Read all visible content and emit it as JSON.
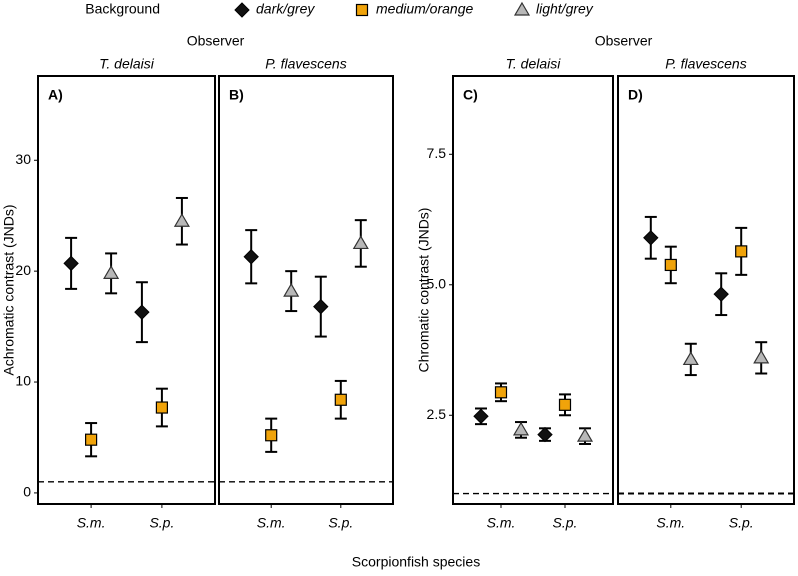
{
  "chart_data": [
    {
      "type": "point-range",
      "panel_label": "A)",
      "facet_title": "T. delaisi",
      "group_label": "Observer",
      "legend_title": "Background",
      "ylabel": "Achromatic contrast (JNDs)",
      "xlabel": "Scorpionfish species",
      "categories": [
        "S.m.",
        "S.p."
      ],
      "ylim": [
        -1,
        37.6
      ],
      "yticks": [
        0,
        10,
        20,
        30
      ],
      "reference_line": 1,
      "series": [
        {
          "name": "dark/grey",
          "color": "#111111",
          "marker": "diamond",
          "values": [
            20.7,
            16.3
          ],
          "errors": [
            2.3,
            2.7
          ]
        },
        {
          "name": "medium/orange",
          "color": "#f0a30a",
          "marker": "square",
          "values": [
            4.8,
            7.7
          ],
          "errors": [
            1.5,
            1.7
          ]
        },
        {
          "name": "light/grey",
          "color": "#b8b8b8",
          "marker": "triangle",
          "values": [
            19.8,
            24.5
          ],
          "errors": [
            1.8,
            2.1
          ]
        }
      ]
    },
    {
      "type": "point-range",
      "panel_label": "B)",
      "facet_title": "P. flavescens",
      "categories": [
        "S.m.",
        "S.p."
      ],
      "ylim": [
        -1,
        37.6
      ],
      "reference_line": 1,
      "series": [
        {
          "color": "#111111",
          "marker": "diamond",
          "values": [
            21.3,
            16.8
          ],
          "errors": [
            2.4,
            2.7
          ]
        },
        {
          "color": "#f0a30a",
          "marker": "square",
          "values": [
            5.2,
            8.4
          ],
          "errors": [
            1.5,
            1.7
          ]
        },
        {
          "color": "#b8b8b8",
          "marker": "triangle",
          "values": [
            18.2,
            22.5
          ],
          "errors": [
            1.8,
            2.1
          ]
        }
      ]
    },
    {
      "type": "point-range",
      "panel_label": "C)",
      "facet_title": "T. delaisi",
      "group_label": "Observer",
      "ylabel": "Chromatic contrast (JNDs)",
      "categories": [
        "S.m.",
        "S.p."
      ],
      "ylim": [
        0.8,
        9.0
      ],
      "yticks": [
        2.5,
        {
          "value": 5,
          "label": "5.0"
        },
        7.5
      ],
      "reference_line": 1,
      "series": [
        {
          "color": "#111111",
          "marker": "diamond",
          "values": [
            2.48,
            2.13
          ],
          "errors": [
            0.15,
            0.12
          ]
        },
        {
          "color": "#f0a30a",
          "marker": "square",
          "values": [
            2.94,
            2.7
          ],
          "errors": [
            0.17,
            0.2
          ]
        },
        {
          "color": "#b8b8b8",
          "marker": "triangle",
          "values": [
            2.22,
            2.1
          ],
          "errors": [
            0.15,
            0.15
          ]
        }
      ]
    },
    {
      "type": "point-range",
      "panel_label": "D)",
      "facet_title": "P. flavescens",
      "categories": [
        "S.m.",
        "S.p."
      ],
      "ylim": [
        0.8,
        9.0
      ],
      "reference_line": 1,
      "series": [
        {
          "color": "#111111",
          "marker": "diamond",
          "values": [
            5.9,
            4.82
          ],
          "errors": [
            0.4,
            0.4
          ]
        },
        {
          "color": "#f0a30a",
          "marker": "square",
          "values": [
            5.38,
            5.64
          ],
          "errors": [
            0.35,
            0.45
          ]
        },
        {
          "color": "#b8b8b8",
          "marker": "triangle",
          "values": [
            3.57,
            3.6
          ],
          "errors": [
            0.3,
            0.3
          ]
        }
      ]
    }
  ]
}
